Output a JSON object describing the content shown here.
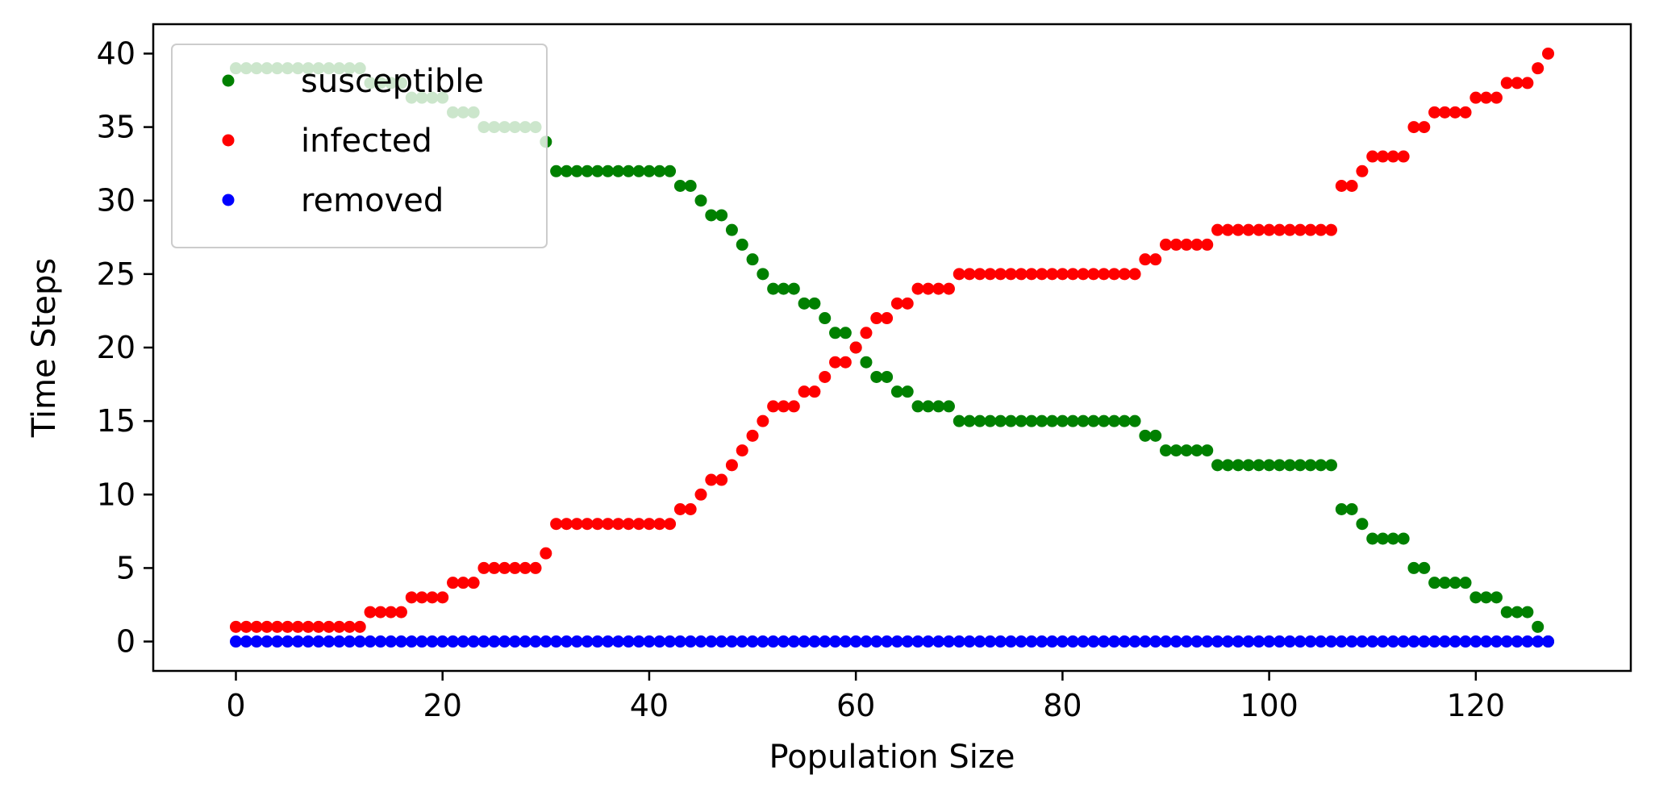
{
  "chart_data": {
    "type": "scatter",
    "title": "",
    "xlabel": "Population Size",
    "ylabel": "Time Steps",
    "xlim": [
      -8,
      135
    ],
    "ylim": [
      -2,
      42
    ],
    "xticks": [
      0,
      20,
      40,
      60,
      80,
      100,
      120
    ],
    "yticks": [
      0,
      5,
      10,
      15,
      20,
      25,
      30,
      35,
      40
    ],
    "grid": false,
    "legend_position": "top-left",
    "x": [
      0,
      1,
      2,
      3,
      4,
      5,
      6,
      7,
      8,
      9,
      10,
      11,
      12,
      13,
      14,
      15,
      16,
      17,
      18,
      19,
      20,
      21,
      22,
      23,
      24,
      25,
      26,
      27,
      28,
      29,
      30,
      31,
      32,
      33,
      34,
      35,
      36,
      37,
      38,
      39,
      40,
      41,
      42,
      43,
      44,
      45,
      46,
      47,
      48,
      49,
      50,
      51,
      52,
      53,
      54,
      55,
      56,
      57,
      58,
      59,
      60,
      61,
      62,
      63,
      64,
      65,
      66,
      67,
      68,
      69,
      70,
      71,
      72,
      73,
      74,
      75,
      76,
      77,
      78,
      79,
      80,
      81,
      82,
      83,
      84,
      85,
      86,
      87,
      88,
      89,
      90,
      91,
      92,
      93,
      94,
      95,
      96,
      97,
      98,
      99,
      100,
      101,
      102,
      103,
      104,
      105,
      106,
      107,
      108,
      109,
      110,
      111,
      112,
      113,
      114,
      115,
      116,
      117,
      118,
      119,
      120,
      121,
      122,
      123,
      124,
      125,
      126,
      127
    ],
    "series": [
      {
        "name": "susceptible",
        "color": "#008000",
        "values": [
          39,
          39,
          39,
          39,
          39,
          39,
          39,
          39,
          39,
          39,
          39,
          39,
          39,
          38,
          38,
          38,
          38,
          37,
          37,
          37,
          37,
          36,
          36,
          36,
          35,
          35,
          35,
          35,
          35,
          35,
          34,
          32,
          32,
          32,
          32,
          32,
          32,
          32,
          32,
          32,
          32,
          32,
          32,
          31,
          31,
          30,
          29,
          29,
          28,
          27,
          26,
          25,
          24,
          24,
          24,
          23,
          23,
          22,
          21,
          21,
          20,
          19,
          18,
          18,
          17,
          17,
          16,
          16,
          16,
          16,
          15,
          15,
          15,
          15,
          15,
          15,
          15,
          15,
          15,
          15,
          15,
          15,
          15,
          15,
          15,
          15,
          15,
          15,
          14,
          14,
          13,
          13,
          13,
          13,
          13,
          12,
          12,
          12,
          12,
          12,
          12,
          12,
          12,
          12,
          12,
          12,
          12,
          9,
          9,
          8,
          7,
          7,
          7,
          7,
          5,
          5,
          4,
          4,
          4,
          4,
          3,
          3,
          3,
          2,
          2,
          2,
          1,
          0
        ]
      },
      {
        "name": "infected",
        "color": "#ff0000",
        "values": [
          1,
          1,
          1,
          1,
          1,
          1,
          1,
          1,
          1,
          1,
          1,
          1,
          1,
          2,
          2,
          2,
          2,
          3,
          3,
          3,
          3,
          4,
          4,
          4,
          5,
          5,
          5,
          5,
          5,
          5,
          6,
          8,
          8,
          8,
          8,
          8,
          8,
          8,
          8,
          8,
          8,
          8,
          8,
          9,
          9,
          10,
          11,
          11,
          12,
          13,
          14,
          15,
          16,
          16,
          16,
          17,
          17,
          18,
          19,
          19,
          20,
          21,
          22,
          22,
          23,
          23,
          24,
          24,
          24,
          24,
          25,
          25,
          25,
          25,
          25,
          25,
          25,
          25,
          25,
          25,
          25,
          25,
          25,
          25,
          25,
          25,
          25,
          25,
          26,
          26,
          27,
          27,
          27,
          27,
          27,
          28,
          28,
          28,
          28,
          28,
          28,
          28,
          28,
          28,
          28,
          28,
          28,
          31,
          31,
          32,
          33,
          33,
          33,
          33,
          35,
          35,
          36,
          36,
          36,
          36,
          37,
          37,
          37,
          38,
          38,
          38,
          39,
          40
        ]
      },
      {
        "name": "removed",
        "color": "#0000ff",
        "values": [
          0,
          0,
          0,
          0,
          0,
          0,
          0,
          0,
          0,
          0,
          0,
          0,
          0,
          0,
          0,
          0,
          0,
          0,
          0,
          0,
          0,
          0,
          0,
          0,
          0,
          0,
          0,
          0,
          0,
          0,
          0,
          0,
          0,
          0,
          0,
          0,
          0,
          0,
          0,
          0,
          0,
          0,
          0,
          0,
          0,
          0,
          0,
          0,
          0,
          0,
          0,
          0,
          0,
          0,
          0,
          0,
          0,
          0,
          0,
          0,
          0,
          0,
          0,
          0,
          0,
          0,
          0,
          0,
          0,
          0,
          0,
          0,
          0,
          0,
          0,
          0,
          0,
          0,
          0,
          0,
          0,
          0,
          0,
          0,
          0,
          0,
          0,
          0,
          0,
          0,
          0,
          0,
          0,
          0,
          0,
          0,
          0,
          0,
          0,
          0,
          0,
          0,
          0,
          0,
          0,
          0,
          0,
          0,
          0,
          0,
          0,
          0,
          0,
          0,
          0,
          0,
          0,
          0,
          0,
          0,
          0,
          0,
          0,
          0,
          0,
          0,
          0,
          0
        ]
      }
    ]
  }
}
